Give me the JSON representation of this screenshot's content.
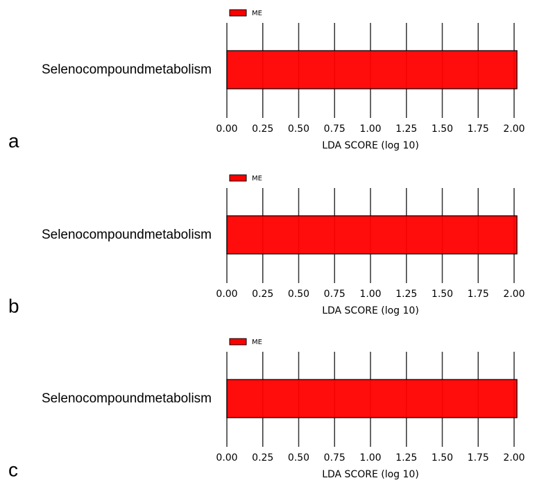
{
  "chart_data": [
    {
      "type": "hbar",
      "panel_label": "a",
      "categories": [
        "Selenocompoundmetabolism"
      ],
      "series": [
        {
          "name": "ME",
          "color": "#ff0000",
          "values": [
            2.02
          ]
        }
      ],
      "xlabel": "LDA SCORE (log 10)",
      "xlim": [
        0,
        2.02
      ],
      "xticks": [
        {
          "value": 0,
          "label": "0.00"
        },
        0.25,
        {
          "value": 0.5,
          "label": "0.50"
        },
        0.75,
        {
          "value": 1,
          "label": "1.00"
        },
        1.25,
        {
          "value": 1.5,
          "label": "1.50"
        },
        1.75,
        {
          "value": 2,
          "label": "2.00"
        }
      ],
      "grid": true
    },
    {
      "type": "hbar",
      "panel_label": "b",
      "categories": [
        "Selenocompoundmetabolism"
      ],
      "series": [
        {
          "name": "ME",
          "color": "#ff0000",
          "values": [
            2.02
          ]
        }
      ],
      "xlabel": "LDA SCORE (log 10)",
      "xlim": [
        0,
        2.02
      ],
      "xticks": [
        {
          "value": 0,
          "label": "0.00"
        },
        0.25,
        {
          "value": 0.5,
          "label": "0.50"
        },
        0.75,
        {
          "value": 1,
          "label": "1.00"
        },
        1.25,
        {
          "value": 1.5,
          "label": "1.50"
        },
        1.75,
        {
          "value": 2,
          "label": "2.00"
        }
      ],
      "grid": true
    },
    {
      "type": "hbar",
      "panel_label": "c",
      "categories": [
        "Selenocompoundmetabolism"
      ],
      "series": [
        {
          "name": "ME",
          "color": "#ff0000",
          "values": [
            2.02
          ]
        }
      ],
      "xlabel": "LDA SCORE (log 10)",
      "xlim": [
        0,
        2.02
      ],
      "xticks": [
        {
          "value": 0,
          "label": "0.00"
        },
        0.25,
        {
          "value": 0.5,
          "label": "0.50"
        },
        0.75,
        {
          "value": 1,
          "label": "1.00"
        },
        1.25,
        {
          "value": 1.5,
          "label": "1.50"
        },
        1.75,
        {
          "value": 2,
          "label": "2.00"
        }
      ],
      "grid": true
    }
  ]
}
